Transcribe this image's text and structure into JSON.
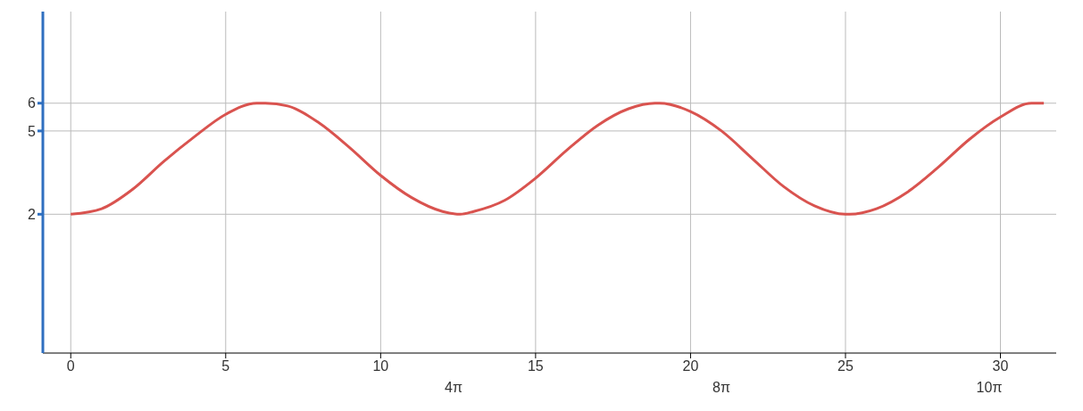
{
  "chart_data": {
    "type": "line",
    "x": [
      0,
      1,
      2,
      3,
      4,
      5,
      6,
      6.28,
      7,
      8,
      9,
      10,
      11,
      12,
      12.57,
      13,
      14,
      15,
      16,
      17,
      18,
      18.85,
      19,
      20,
      21,
      22,
      23,
      24,
      25,
      25.13,
      26,
      27,
      28,
      29,
      30,
      31,
      31.4
    ],
    "series": [
      {
        "color": "#d9534f",
        "values": [
          2,
          2.2,
          2.9,
          3.9,
          4.8,
          5.6,
          6,
          6,
          5.9,
          5.3,
          4.4,
          3.4,
          2.6,
          2.1,
          2,
          2.1,
          2.5,
          3.3,
          4.3,
          5.2,
          5.8,
          6,
          6,
          5.7,
          5,
          4,
          3,
          2.3,
          2,
          2,
          2.2,
          2.8,
          3.7,
          4.7,
          5.5,
          6,
          6
        ]
      }
    ],
    "xlim": [
      -0.9,
      31.8
    ],
    "ylim": [
      -3,
      9.3
    ],
    "xticks": [
      0,
      5,
      10,
      15,
      20,
      25,
      30
    ],
    "annotations": [
      "4π",
      "8π",
      "10π"
    ],
    "yticks": [
      2,
      5,
      6
    ],
    "grid": true,
    "marker": "none",
    "line_style": "solid"
  }
}
